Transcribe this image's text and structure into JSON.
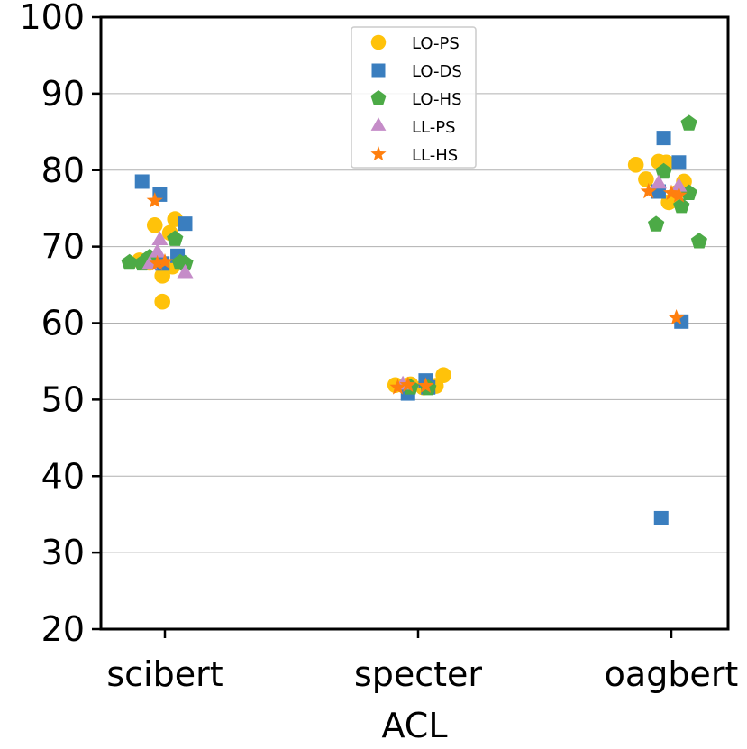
{
  "chart_data": {
    "type": "scatter",
    "title": "",
    "xlabel": "ACL",
    "ylabel": "",
    "categories": [
      "scibert",
      "specter",
      "oagbert"
    ],
    "ylim": [
      20,
      100
    ],
    "yticks": [
      20,
      30,
      40,
      50,
      60,
      70,
      80,
      90,
      100
    ],
    "grid": "horizontal",
    "legend_position": "top-center",
    "series": [
      {
        "name": "LO-PS",
        "marker": "circle",
        "color": "#FFC20A",
        "points": [
          {
            "category": "scibert",
            "offset": -0.1,
            "y": 68.2
          },
          {
            "category": "scibert",
            "offset": -0.04,
            "y": 72.8
          },
          {
            "category": "scibert",
            "offset": 0.02,
            "y": 71.8
          },
          {
            "category": "scibert",
            "offset": 0.04,
            "y": 73.6
          },
          {
            "category": "scibert",
            "offset": -0.01,
            "y": 66.2
          },
          {
            "category": "scibert",
            "offset": -0.01,
            "y": 62.8
          },
          {
            "category": "scibert",
            "offset": 0.03,
            "y": 67.4
          },
          {
            "category": "scibert",
            "offset": -0.06,
            "y": 67.9
          },
          {
            "category": "specter",
            "offset": -0.09,
            "y": 51.9
          },
          {
            "category": "specter",
            "offset": -0.03,
            "y": 52.0
          },
          {
            "category": "specter",
            "offset": 0.07,
            "y": 51.8
          },
          {
            "category": "specter",
            "offset": 0.1,
            "y": 53.2
          },
          {
            "category": "specter",
            "offset": 0.02,
            "y": 51.6
          },
          {
            "category": "oagbert",
            "offset": -0.14,
            "y": 80.7
          },
          {
            "category": "oagbert",
            "offset": -0.1,
            "y": 78.8
          },
          {
            "category": "oagbert",
            "offset": -0.05,
            "y": 81.1
          },
          {
            "category": "oagbert",
            "offset": -0.02,
            "y": 81.0
          },
          {
            "category": "oagbert",
            "offset": 0.05,
            "y": 78.5
          },
          {
            "category": "oagbert",
            "offset": -0.01,
            "y": 75.8
          },
          {
            "category": "oagbert",
            "offset": 0.02,
            "y": 77.0
          }
        ]
      },
      {
        "name": "LO-DS",
        "marker": "square",
        "color": "#3A7EBF",
        "points": [
          {
            "category": "scibert",
            "offset": -0.09,
            "y": 78.5
          },
          {
            "category": "scibert",
            "offset": -0.02,
            "y": 76.8
          },
          {
            "category": "scibert",
            "offset": 0.08,
            "y": 73.0
          },
          {
            "category": "scibert",
            "offset": 0.05,
            "y": 68.8
          },
          {
            "category": "scibert",
            "offset": -0.01,
            "y": 67.8
          },
          {
            "category": "specter",
            "offset": -0.04,
            "y": 50.8
          },
          {
            "category": "specter",
            "offset": 0.03,
            "y": 52.5
          },
          {
            "category": "specter",
            "offset": 0.04,
            "y": 51.6
          },
          {
            "category": "oagbert",
            "offset": -0.03,
            "y": 84.2
          },
          {
            "category": "oagbert",
            "offset": 0.03,
            "y": 81.0
          },
          {
            "category": "oagbert",
            "offset": -0.05,
            "y": 77.2
          },
          {
            "category": "oagbert",
            "offset": 0.04,
            "y": 60.2
          },
          {
            "category": "oagbert",
            "offset": -0.04,
            "y": 34.5
          }
        ]
      },
      {
        "name": "LO-HS",
        "marker": "pentagon",
        "color": "#4CAA46",
        "points": [
          {
            "category": "scibert",
            "offset": -0.14,
            "y": 67.9
          },
          {
            "category": "scibert",
            "offset": -0.09,
            "y": 67.8
          },
          {
            "category": "scibert",
            "offset": -0.06,
            "y": 68.6
          },
          {
            "category": "scibert",
            "offset": 0.04,
            "y": 71.0
          },
          {
            "category": "scibert",
            "offset": 0.06,
            "y": 67.9
          },
          {
            "category": "scibert",
            "offset": 0.08,
            "y": 67.8
          },
          {
            "category": "specter",
            "offset": 0.04,
            "y": 51.5
          },
          {
            "category": "specter",
            "offset": -0.03,
            "y": 51.6
          },
          {
            "category": "oagbert",
            "offset": 0.07,
            "y": 86.1
          },
          {
            "category": "oagbert",
            "offset": -0.03,
            "y": 79.8
          },
          {
            "category": "oagbert",
            "offset": -0.06,
            "y": 72.9
          },
          {
            "category": "oagbert",
            "offset": 0.04,
            "y": 75.3
          },
          {
            "category": "oagbert",
            "offset": 0.07,
            "y": 77.0
          },
          {
            "category": "oagbert",
            "offset": 0.11,
            "y": 70.7
          }
        ]
      },
      {
        "name": "LL-PS",
        "marker": "triangle",
        "color": "#C58CC8",
        "points": [
          {
            "category": "scibert",
            "offset": -0.06,
            "y": 67.6
          },
          {
            "category": "scibert",
            "offset": -0.02,
            "y": 70.8
          },
          {
            "category": "scibert",
            "offset": -0.03,
            "y": 69.2
          },
          {
            "category": "scibert",
            "offset": 0.08,
            "y": 66.5
          },
          {
            "category": "specter",
            "offset": -0.06,
            "y": 51.9
          },
          {
            "category": "oagbert",
            "offset": -0.05,
            "y": 78.2
          },
          {
            "category": "oagbert",
            "offset": 0.03,
            "y": 77.8
          }
        ]
      },
      {
        "name": "LL-HS",
        "marker": "star",
        "color": "#FF7F0E",
        "points": [
          {
            "category": "scibert",
            "offset": -0.04,
            "y": 76.0
          },
          {
            "category": "scibert",
            "offset": -0.03,
            "y": 67.8
          },
          {
            "category": "scibert",
            "offset": 0.0,
            "y": 68.0
          },
          {
            "category": "specter",
            "offset": -0.08,
            "y": 51.6
          },
          {
            "category": "specter",
            "offset": -0.04,
            "y": 51.9
          },
          {
            "category": "specter",
            "offset": 0.03,
            "y": 51.8
          },
          {
            "category": "oagbert",
            "offset": -0.09,
            "y": 77.2
          },
          {
            "category": "oagbert",
            "offset": 0.0,
            "y": 77.0
          },
          {
            "category": "oagbert",
            "offset": 0.03,
            "y": 76.7
          },
          {
            "category": "oagbert",
            "offset": 0.02,
            "y": 60.7
          }
        ]
      }
    ]
  }
}
